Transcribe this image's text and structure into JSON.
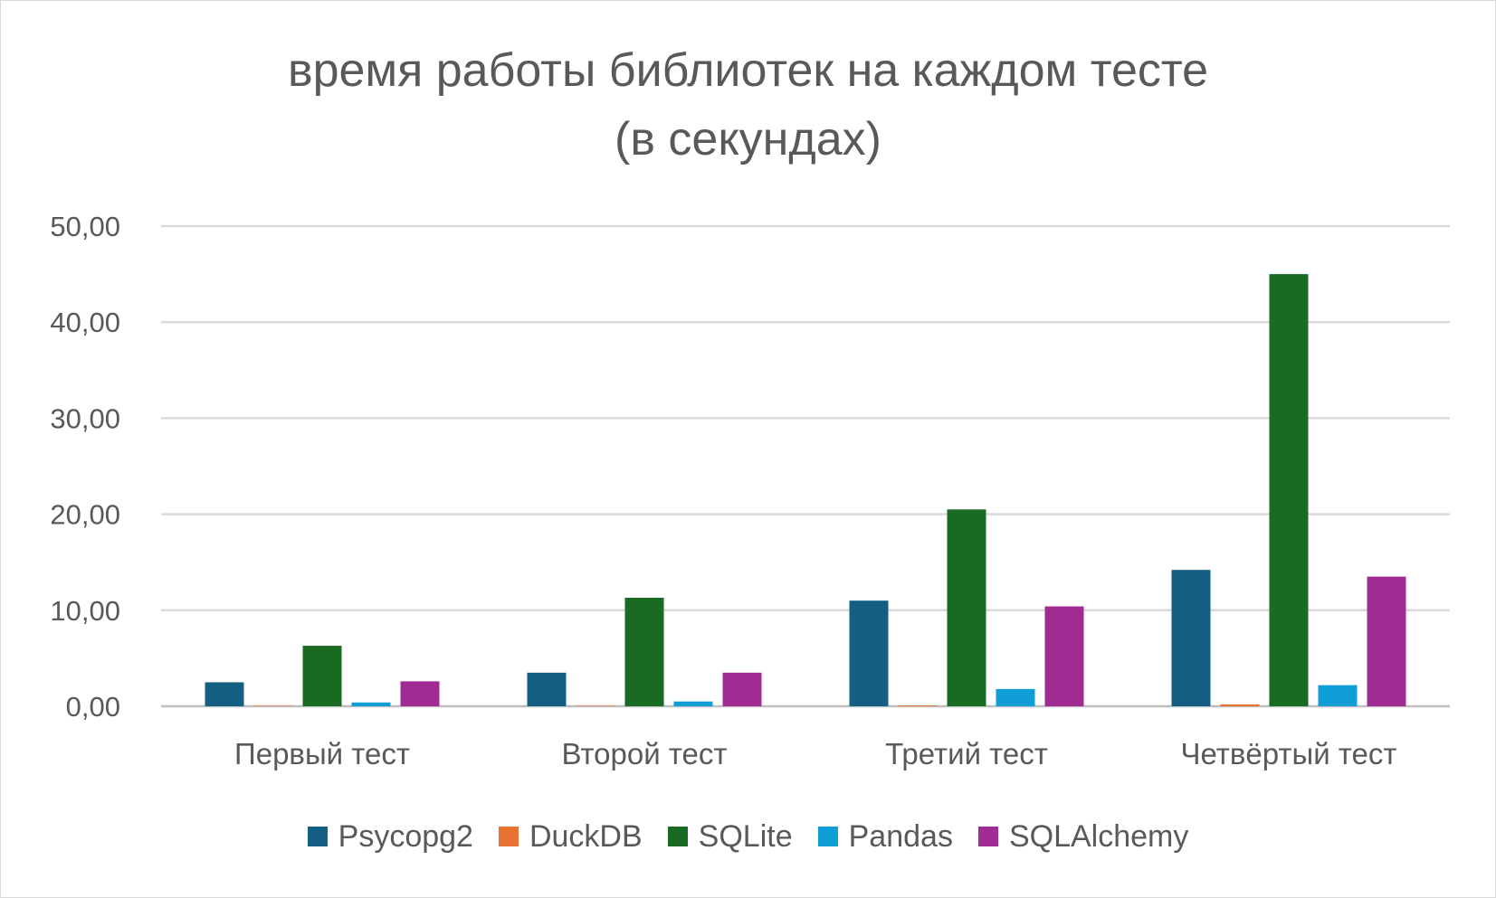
{
  "chart_data": {
    "type": "bar",
    "title_line1": "время работы библиотек на каждом тесте",
    "title_line2": "(в секундах)",
    "xlabel": "",
    "ylabel": "",
    "categories": [
      "Первый тест",
      "Второй тест",
      "Третий тест",
      "Четвёртый тест"
    ],
    "series": [
      {
        "name": "Psycopg2",
        "color": "#156082",
        "values": [
          2.5,
          3.5,
          11.0,
          14.2
        ]
      },
      {
        "name": "DuckDB",
        "color": "#e97132",
        "values": [
          0.05,
          0.05,
          0.08,
          0.2
        ]
      },
      {
        "name": "SQLite",
        "color": "#196b24",
        "values": [
          6.3,
          11.3,
          20.5,
          45.0
        ]
      },
      {
        "name": "Pandas",
        "color": "#0f9ed5",
        "values": [
          0.4,
          0.5,
          1.8,
          2.2
        ]
      },
      {
        "name": "SQLAlchemy",
        "color": "#a02b93",
        "values": [
          2.6,
          3.5,
          10.4,
          13.5
        ]
      }
    ],
    "yticks": [
      "0,00",
      "10,00",
      "20,00",
      "30,00",
      "40,00",
      "50,00"
    ],
    "ylim": [
      0,
      50
    ],
    "grid": true,
    "legend_position": "bottom"
  }
}
